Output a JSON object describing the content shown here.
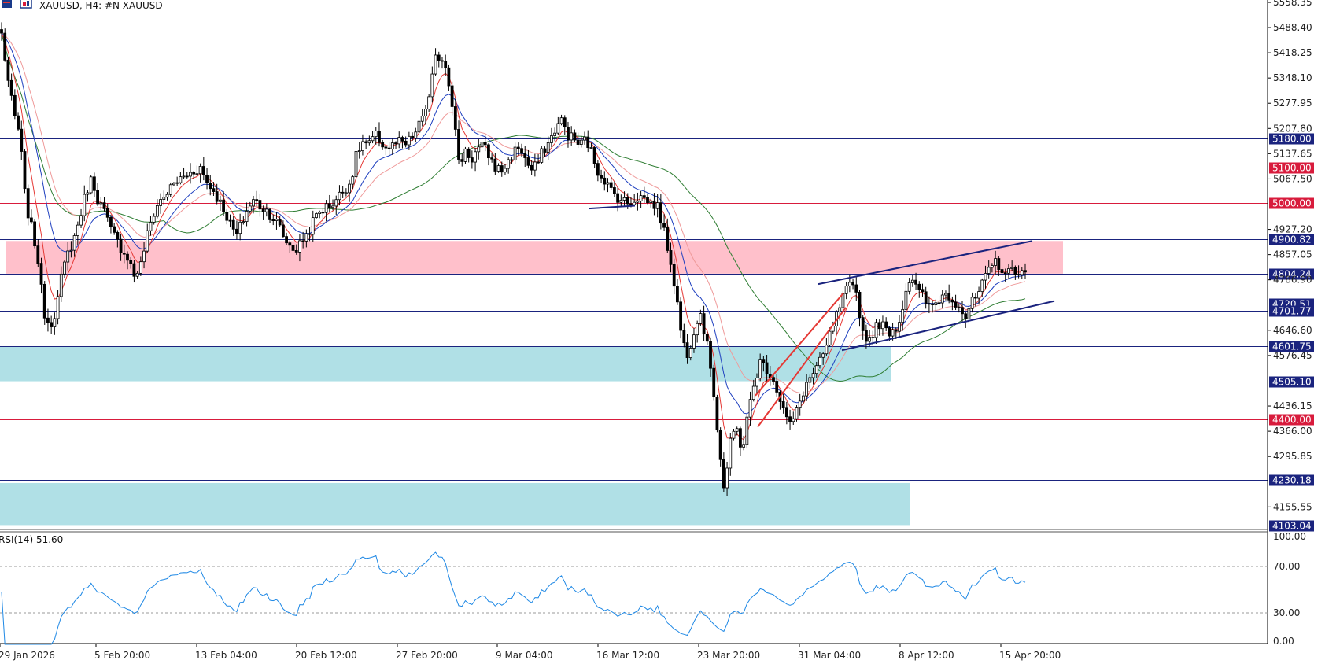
{
  "header": {
    "symbol_label": "XAUUSD, H4:  #N-XAUUSD",
    "icons": [
      "chart-window-icon",
      "instrument-icon"
    ]
  },
  "rsi_panel": {
    "label": "RSI(14) 51.60",
    "ticks": [
      "100.00",
      "70.00",
      "30.00",
      "0.00"
    ],
    "color": "#1e88e5"
  },
  "chart_data": {
    "type": "candlestick",
    "symbol": "XAUUSD",
    "timeframe": "H4",
    "y_ticks": [
      "5558.35",
      "5488.40",
      "5418.25",
      "5348.10",
      "5277.95",
      "5207.80",
      "5137.65",
      "5067.50",
      "4927.20",
      "4857.05",
      "4786.90",
      "4646.60",
      "4576.45",
      "4436.15",
      "4366.00",
      "4295.85",
      "4155.55"
    ],
    "x_ticks": [
      "29 Jan 2026",
      "5 Feb 20:00",
      "13 Feb 04:00",
      "20 Feb 12:00",
      "27 Feb 20:00",
      "9 Mar 04:00",
      "16 Mar 12:00",
      "23 Mar 20:00",
      "31 Mar 04:00",
      "8 Apr 12:00",
      "15 Apr 20:00"
    ],
    "ylim": [
      4095,
      5565
    ],
    "levels": [
      {
        "value": 5180.0,
        "label": "5180.00",
        "color": "#1a237e"
      },
      {
        "value": 5100.0,
        "label": "5100.00",
        "color": "#d81b3c"
      },
      {
        "value": 5000.0,
        "label": "5000.00",
        "color": "#d81b3c"
      },
      {
        "value": 4900.82,
        "label": "4900.82",
        "color": "#1a237e"
      },
      {
        "value": 4804.24,
        "label": "4804.24",
        "color": "#1a237e"
      },
      {
        "value": 4720.51,
        "label": "4720.51",
        "color": "#1a237e"
      },
      {
        "value": 4701.77,
        "label": "4701.77",
        "color": "#1a237e"
      },
      {
        "value": 4601.75,
        "label": "4601.75",
        "color": "#1a237e"
      },
      {
        "value": 4505.1,
        "label": "4505.10",
        "color": "#1a237e"
      },
      {
        "value": 4400.0,
        "label": "4400.00",
        "color": "#d81b3c"
      },
      {
        "value": 4230.18,
        "label": "4230.18",
        "color": "#1a237e"
      },
      {
        "value": 4103.04,
        "label": "4103.04",
        "color": "#1a237e"
      }
    ],
    "zones": [
      {
        "from": 4804,
        "to": 4895,
        "color": "#ffc0cb"
      },
      {
        "from": 4505,
        "to": 4601,
        "color": "#b0e0e6"
      },
      {
        "from": 4105,
        "to": 4222,
        "color": "#b0e0e6"
      }
    ],
    "closes": [
      5470,
      5350,
      5250,
      5190,
      5000,
      4930,
      4850,
      4700,
      4660,
      4700,
      4800,
      4860,
      4900,
      4960,
      5030,
      5070,
      5010,
      4980,
      4930,
      4900,
      4870,
      4850,
      4800,
      4820,
      4900,
      4960,
      5000,
      5020,
      5040,
      5060,
      5070,
      5080,
      5090,
      5100,
      5060,
      5040,
      5010,
      4980,
      4940,
      4910,
      4950,
      4990,
      5010,
      4990,
      4980,
      4960,
      4940,
      4900,
      4880,
      4870,
      4900,
      4920,
      4960,
      4980,
      4990,
      5000,
      5020,
      5040,
      5060,
      5140,
      5170,
      5160,
      5190,
      5170,
      5150,
      5160,
      5170,
      5160,
      5180,
      5200,
      5250,
      5290,
      5400,
      5410,
      5370,
      5260,
      5100,
      5150,
      5120,
      5150,
      5160,
      5130,
      5100,
      5090,
      5110,
      5140,
      5160,
      5120,
      5090,
      5110,
      5150,
      5170,
      5210,
      5230,
      5190,
      5180,
      5160,
      5180,
      5140,
      5090,
      5070,
      5040,
      5020,
      5010,
      5000,
      5010,
      5020,
      5010,
      5000,
      4990,
      4920,
      4850,
      4750,
      4620,
      4580,
      4650,
      4700,
      4620,
      4520,
      4350,
      4200,
      4330,
      4380,
      4310,
      4420,
      4500,
      4560,
      4540,
      4520,
      4470,
      4420,
      4380,
      4420,
      4470,
      4510,
      4530,
      4560,
      4600,
      4660,
      4700,
      4750,
      4770,
      4750,
      4640,
      4620,
      4650,
      4670,
      4640,
      4650,
      4660,
      4750,
      4800,
      4760,
      4740,
      4710,
      4720,
      4740,
      4750,
      4730,
      4720,
      4680,
      4720,
      4740,
      4780,
      4810,
      4840,
      4820,
      4800,
      4820,
      4810,
      4800
    ],
    "overlays": [
      "moving averages (red, blue, light red, green)",
      "red rising channel",
      "navy rising channel"
    ]
  }
}
